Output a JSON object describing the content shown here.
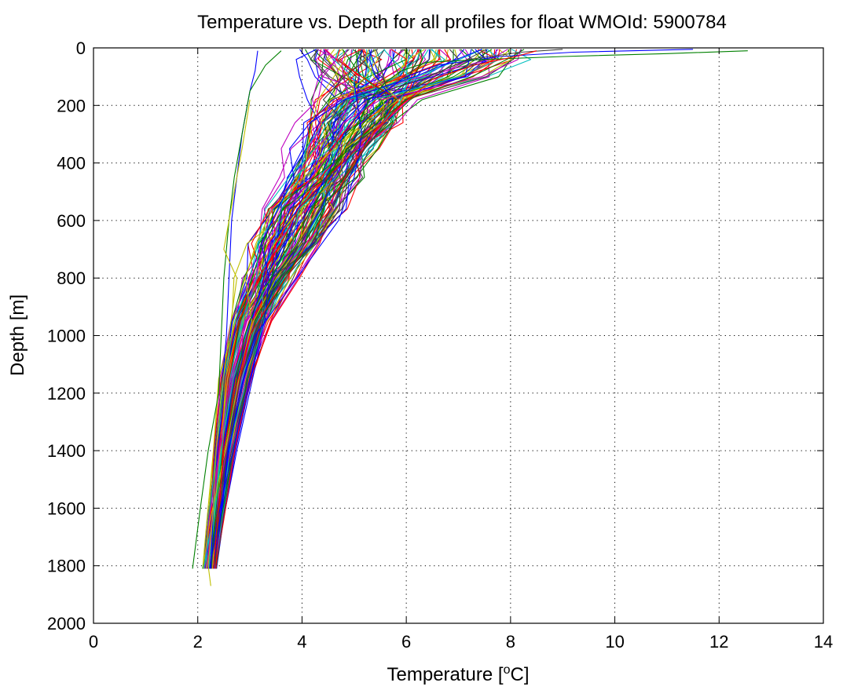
{
  "chart_data": {
    "type": "line",
    "title": "Temperature vs. Depth for all profiles for float WMOId: 5900784",
    "xlabel": {
      "prefix": "Temperature [",
      "superscript": "o",
      "suffix": "C]"
    },
    "ylabel": "Depth [m]",
    "xlim": [
      0,
      14
    ],
    "ylim": [
      0,
      2000
    ],
    "y_reversed": true,
    "grid": true,
    "grid_style": "dotted",
    "legend": "none",
    "x_ticks": [
      0,
      2,
      4,
      6,
      8,
      10,
      12,
      14
    ],
    "y_ticks": [
      0,
      200,
      400,
      600,
      800,
      1000,
      1200,
      1400,
      1600,
      1800,
      2000
    ],
    "series_colors": [
      "#0000ff",
      "#008000",
      "#ff0000",
      "#00bfbf",
      "#bf00bf",
      "#bfbf00",
      "#404040"
    ],
    "profile_count": 135,
    "series": [
      {
        "color": "#0000ff",
        "points": [
          [
            11.5,
            5
          ],
          [
            9.2,
            15
          ],
          [
            7.8,
            30
          ],
          [
            6.6,
            60
          ],
          [
            6.0,
            100
          ],
          [
            5.6,
            150
          ],
          [
            5.2,
            200
          ],
          [
            5.0,
            250
          ],
          [
            4.8,
            300
          ],
          [
            4.6,
            400
          ],
          [
            4.3,
            500
          ],
          [
            4.0,
            600
          ],
          [
            3.6,
            700
          ],
          [
            3.3,
            800
          ],
          [
            3.1,
            900
          ],
          [
            2.9,
            1000
          ],
          [
            2.7,
            1200
          ],
          [
            2.5,
            1400
          ],
          [
            2.4,
            1600
          ],
          [
            2.3,
            1810
          ]
        ]
      },
      {
        "color": "#008000",
        "points": [
          [
            12.55,
            10
          ],
          [
            11.0,
            20
          ],
          [
            9.0,
            30
          ],
          [
            7.5,
            40
          ],
          [
            6.4,
            50
          ],
          [
            5.9,
            80
          ],
          [
            5.6,
            120
          ],
          [
            5.3,
            180
          ],
          [
            5.1,
            250
          ],
          [
            4.9,
            320
          ],
          [
            4.6,
            420
          ],
          [
            4.3,
            520
          ],
          [
            4.0,
            620
          ],
          [
            3.7,
            700
          ],
          [
            3.4,
            800
          ],
          [
            3.1,
            900
          ],
          [
            2.9,
            1000
          ],
          [
            2.7,
            1200
          ],
          [
            2.5,
            1400
          ],
          [
            2.4,
            1600
          ],
          [
            2.3,
            1810
          ]
        ]
      },
      {
        "color": "#0000ff",
        "points": [
          [
            3.15,
            10
          ],
          [
            3.1,
            80
          ],
          [
            3.0,
            150
          ],
          [
            2.85,
            300
          ],
          [
            2.75,
            450
          ],
          [
            2.65,
            600
          ],
          [
            2.6,
            800
          ],
          [
            2.55,
            1000
          ],
          [
            2.45,
            1200
          ],
          [
            2.35,
            1400
          ],
          [
            2.3,
            1600
          ],
          [
            2.25,
            1810
          ]
        ]
      },
      {
        "color": "#008000",
        "points": [
          [
            3.6,
            10
          ],
          [
            3.3,
            60
          ],
          [
            3.0,
            150
          ],
          [
            2.85,
            300
          ],
          [
            2.7,
            450
          ],
          [
            2.6,
            600
          ],
          [
            2.5,
            800
          ],
          [
            2.45,
            1000
          ],
          [
            2.4,
            1200
          ],
          [
            2.2,
            1400
          ],
          [
            2.05,
            1600
          ],
          [
            1.9,
            1810
          ]
        ]
      },
      {
        "color": "#bfbf00",
        "points": [
          [
            3.0,
            180
          ],
          [
            2.85,
            350
          ],
          [
            2.65,
            550
          ],
          [
            2.5,
            700
          ],
          [
            2.75,
            800
          ],
          [
            2.6,
            1000
          ],
          [
            2.45,
            1200
          ],
          [
            2.35,
            1400
          ],
          [
            2.3,
            1600
          ],
          [
            2.2,
            1800
          ],
          [
            2.25,
            1870
          ]
        ]
      },
      {
        "color": "#0000ff",
        "points": [
          [
            5.0,
            120
          ],
          [
            5.15,
            300
          ],
          [
            5.0,
            450
          ],
          [
            4.7,
            600
          ],
          [
            4.3,
            700
          ],
          [
            3.9,
            800
          ],
          [
            3.5,
            900
          ],
          [
            3.1,
            1000
          ],
          [
            2.8,
            1200
          ],
          [
            2.6,
            1400
          ],
          [
            2.45,
            1600
          ],
          [
            2.3,
            1810
          ]
        ]
      },
      {
        "color": "#404040",
        "points": [
          [
            9.0,
            5
          ],
          [
            8.2,
            15
          ],
          [
            7.2,
            40
          ],
          [
            6.4,
            100
          ],
          [
            5.8,
            180
          ],
          [
            5.3,
            260
          ],
          [
            4.9,
            380
          ],
          [
            4.5,
            500
          ],
          [
            4.1,
            640
          ],
          [
            3.7,
            760
          ],
          [
            3.3,
            880
          ],
          [
            3.0,
            1000
          ],
          [
            2.7,
            1200
          ],
          [
            2.5,
            1400
          ],
          [
            2.4,
            1600
          ],
          [
            2.3,
            1810
          ]
        ]
      },
      {
        "color": "#ff0000",
        "points": [
          [
            8.5,
            10
          ],
          [
            8.1,
            30
          ],
          [
            7.3,
            60
          ],
          [
            6.5,
            110
          ],
          [
            5.9,
            200
          ],
          [
            5.4,
            290
          ],
          [
            5.0,
            400
          ],
          [
            4.6,
            520
          ],
          [
            4.2,
            650
          ],
          [
            3.8,
            770
          ],
          [
            3.4,
            880
          ],
          [
            3.0,
            1000
          ],
          [
            2.7,
            1200
          ],
          [
            2.5,
            1400
          ],
          [
            2.4,
            1600
          ],
          [
            2.3,
            1810
          ]
        ]
      }
    ]
  }
}
